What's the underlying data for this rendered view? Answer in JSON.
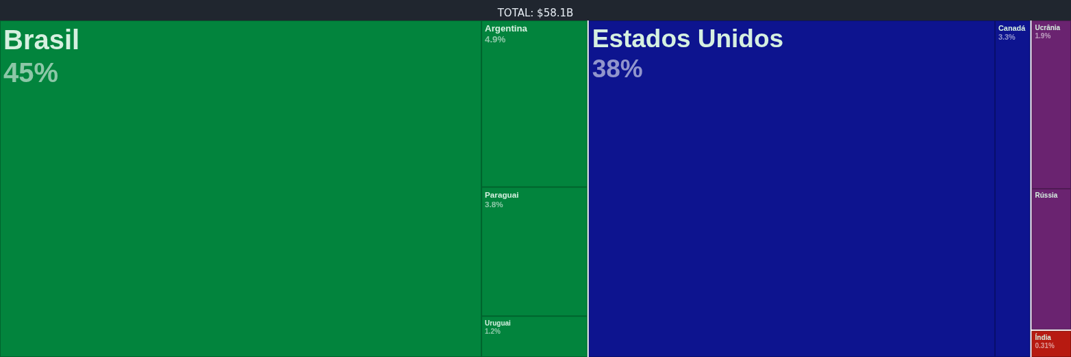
{
  "chart_data": {
    "type": "other",
    "title": "TOTAL: $58.1B",
    "categories": [
      "Brasil",
      "Argentina",
      "Paraguai",
      "Uruguai",
      "Estados Unidos",
      "Canadá",
      "Ucrânia",
      "Rússia",
      "Índia"
    ],
    "values": [
      45,
      4.9,
      3.8,
      1.2,
      38,
      3.3,
      1.9,
      null,
      0.31
    ],
    "value_labels": [
      "45%",
      "4.9%",
      "3.8%",
      "1.2%",
      "38%",
      "3.3%",
      "1.9%",
      null,
      "0.31%"
    ],
    "colors": [
      "#02843d",
      "#02843d",
      "#02843d",
      "#02843d",
      "#0d148f",
      "#0d148f",
      "#6a2370",
      "#6a2370",
      "#b71a11"
    ]
  }
}
